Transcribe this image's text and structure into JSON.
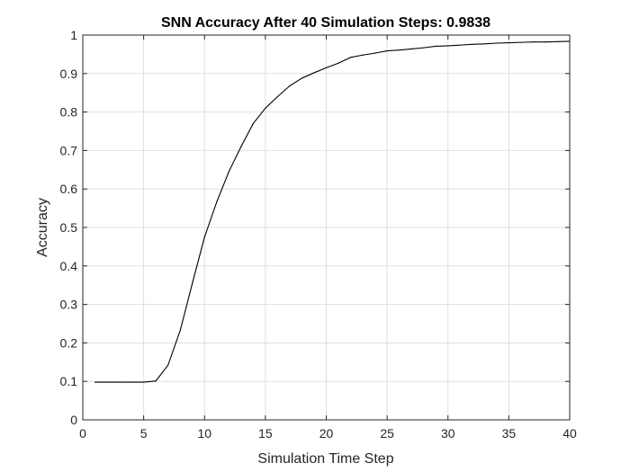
{
  "chart_data": {
    "type": "line",
    "title": "SNN Accuracy After 40 Simulation Steps: 0.9838",
    "xlabel": "Simulation Time Step",
    "ylabel": "Accuracy",
    "xlim": [
      0,
      40
    ],
    "ylim": [
      0,
      1
    ],
    "x_ticks": [
      0,
      5,
      10,
      15,
      20,
      25,
      30,
      35,
      40
    ],
    "x_tick_labels": [
      "0",
      "5",
      "10",
      "15",
      "20",
      "25",
      "30",
      "35",
      "40"
    ],
    "y_ticks": [
      0,
      0.1,
      0.2,
      0.3,
      0.4,
      0.5,
      0.6,
      0.7,
      0.8,
      0.9,
      1
    ],
    "y_tick_labels": [
      "0",
      "0.1",
      "0.2",
      "0.3",
      "0.4",
      "0.5",
      "0.6",
      "0.7",
      "0.8",
      "0.9",
      "1"
    ],
    "grid": true,
    "legend": "none",
    "series": [
      {
        "color": "#000000",
        "x": [
          1,
          2,
          3,
          4,
          5,
          6,
          7,
          8,
          9,
          10,
          11,
          12,
          13,
          14,
          15,
          16,
          17,
          18,
          19,
          20,
          21,
          22,
          23,
          24,
          25,
          26,
          27,
          28,
          29,
          30,
          31,
          32,
          33,
          34,
          35,
          36,
          37,
          38,
          39,
          40
        ],
        "values": [
          0.098,
          0.098,
          0.098,
          0.098,
          0.098,
          0.101,
          0.142,
          0.232,
          0.355,
          0.475,
          0.566,
          0.645,
          0.71,
          0.77,
          0.81,
          0.84,
          0.868,
          0.888,
          0.902,
          0.915,
          0.927,
          0.942,
          0.948,
          0.953,
          0.959,
          0.961,
          0.964,
          0.967,
          0.971,
          0.972,
          0.974,
          0.976,
          0.977,
          0.979,
          0.98,
          0.981,
          0.982,
          0.982,
          0.983,
          0.9838
        ]
      }
    ]
  }
}
